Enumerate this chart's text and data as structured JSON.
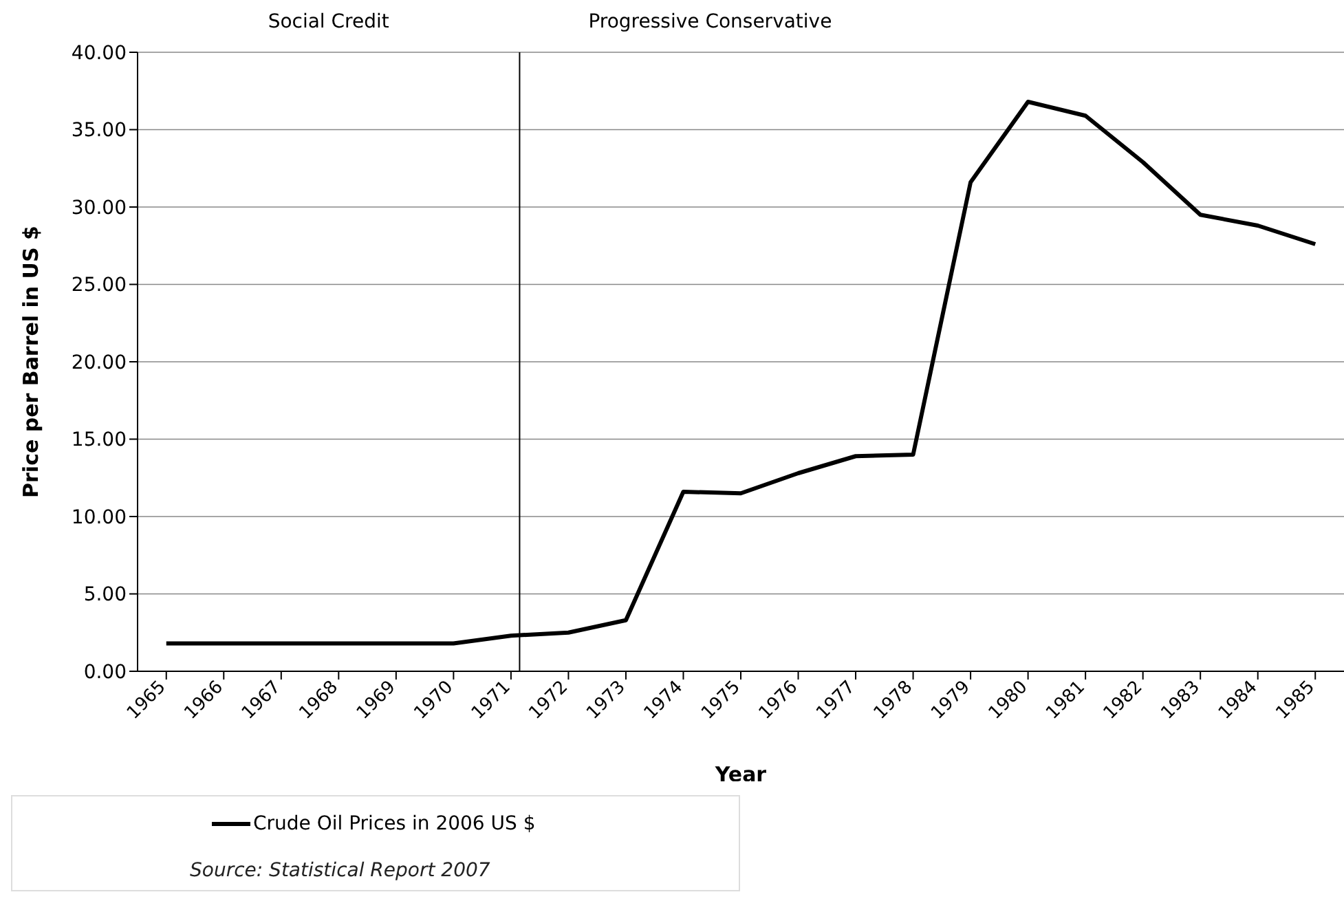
{
  "chart_data": {
    "type": "line",
    "xlabel": "Year",
    "ylabel": "Price per Barrel in US $",
    "x": [
      1965,
      1966,
      1967,
      1968,
      1969,
      1970,
      1971,
      1972,
      1973,
      1974,
      1975,
      1976,
      1977,
      1978,
      1979,
      1980,
      1981,
      1982,
      1983,
      1984,
      1985
    ],
    "series": [
      {
        "name": "Crude Oil Prices in 2006 US $",
        "color": "#000000",
        "values": [
          1.8,
          1.8,
          1.8,
          1.8,
          1.8,
          1.8,
          2.3,
          2.5,
          3.3,
          11.6,
          11.5,
          12.8,
          13.9,
          14.0,
          31.6,
          36.8,
          35.9,
          32.9,
          29.5,
          28.8,
          27.6
        ]
      }
    ],
    "xlim": [
      1964.5,
      1985.5
    ],
    "xticks": [
      1965,
      1966,
      1967,
      1968,
      1969,
      1970,
      1971,
      1972,
      1973,
      1974,
      1975,
      1976,
      1977,
      1978,
      1979,
      1980,
      1981,
      1982,
      1983,
      1984,
      1985
    ],
    "ylim": [
      0,
      40
    ],
    "yticks": [
      {
        "value": 0,
        "label": "0.00"
      },
      {
        "value": 5,
        "label": "5.00"
      },
      {
        "value": 10,
        "label": "10.00"
      },
      {
        "value": 15,
        "label": "15.00"
      },
      {
        "value": 20,
        "label": "20.00"
      },
      {
        "value": 25,
        "label": "25.00"
      },
      {
        "value": 30,
        "label": "30.00"
      },
      {
        "value": 35,
        "label": "35.00"
      },
      {
        "value": 40,
        "label": "40.00"
      }
    ],
    "grid": "y",
    "legend": "bottom left",
    "marker": "none",
    "line_style": "solid",
    "ref_lines": [
      {
        "axis": "x",
        "value": 1971.15,
        "color": "#000000"
      }
    ],
    "annotations": [
      "Social Credit",
      "Progressive Conservative",
      "Source: Statistical Report 2007"
    ]
  }
}
